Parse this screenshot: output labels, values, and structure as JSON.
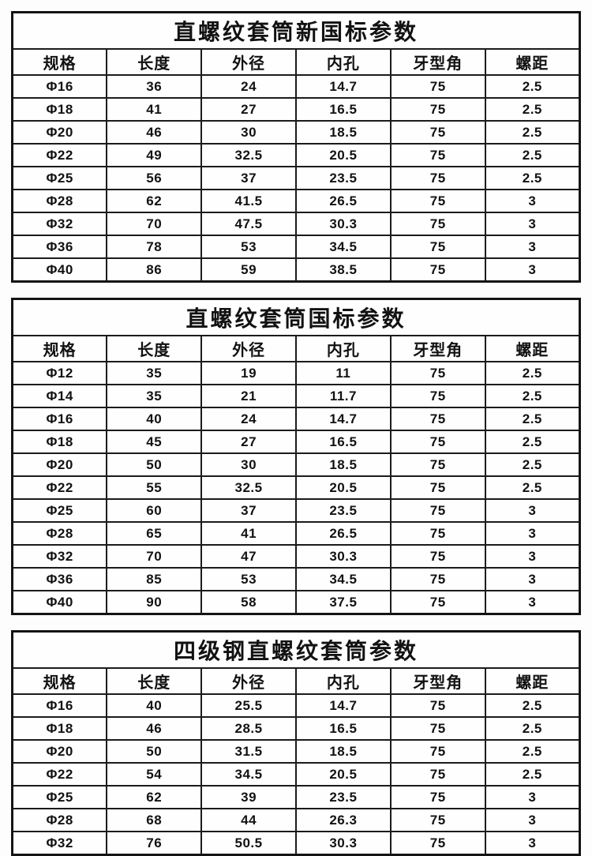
{
  "page": {
    "background_color": "#fdfdfd",
    "border_color": "#1b1b1b",
    "text_color": "#121212"
  },
  "tables": [
    {
      "title": "直螺纹套筒新国标参数",
      "headers": [
        "规格",
        "长度",
        "外径",
        "内孔",
        "牙型角",
        "螺距"
      ],
      "rows": [
        [
          "Φ16",
          "36",
          "24",
          "14.7",
          "75",
          "2.5"
        ],
        [
          "Φ18",
          "41",
          "27",
          "16.5",
          "75",
          "2.5"
        ],
        [
          "Φ20",
          "46",
          "30",
          "18.5",
          "75",
          "2.5"
        ],
        [
          "Φ22",
          "49",
          "32.5",
          "20.5",
          "75",
          "2.5"
        ],
        [
          "Φ25",
          "56",
          "37",
          "23.5",
          "75",
          "2.5"
        ],
        [
          "Φ28",
          "62",
          "41.5",
          "26.5",
          "75",
          "3"
        ],
        [
          "Φ32",
          "70",
          "47.5",
          "30.3",
          "75",
          "3"
        ],
        [
          "Φ36",
          "78",
          "53",
          "34.5",
          "75",
          "3"
        ],
        [
          "Φ40",
          "86",
          "59",
          "38.5",
          "75",
          "3"
        ]
      ]
    },
    {
      "title": "直螺纹套筒国标参数",
      "headers": [
        "规格",
        "长度",
        "外径",
        "内孔",
        "牙型角",
        "螺距"
      ],
      "rows": [
        [
          "Φ12",
          "35",
          "19",
          "11",
          "75",
          "2.5"
        ],
        [
          "Φ14",
          "35",
          "21",
          "11.7",
          "75",
          "2.5"
        ],
        [
          "Φ16",
          "40",
          "24",
          "14.7",
          "75",
          "2.5"
        ],
        [
          "Φ18",
          "45",
          "27",
          "16.5",
          "75",
          "2.5"
        ],
        [
          "Φ20",
          "50",
          "30",
          "18.5",
          "75",
          "2.5"
        ],
        [
          "Φ22",
          "55",
          "32.5",
          "20.5",
          "75",
          "2.5"
        ],
        [
          "Φ25",
          "60",
          "37",
          "23.5",
          "75",
          "3"
        ],
        [
          "Φ28",
          "65",
          "41",
          "26.5",
          "75",
          "3"
        ],
        [
          "Φ32",
          "70",
          "47",
          "30.3",
          "75",
          "3"
        ],
        [
          "Φ36",
          "85",
          "53",
          "34.5",
          "75",
          "3"
        ],
        [
          "Φ40",
          "90",
          "58",
          "37.5",
          "75",
          "3"
        ]
      ]
    },
    {
      "title": "四级钢直螺纹套筒参数",
      "headers": [
        "规格",
        "长度",
        "外径",
        "内孔",
        "牙型角",
        "螺距"
      ],
      "rows": [
        [
          "Φ16",
          "40",
          "25.5",
          "14.7",
          "75",
          "2.5"
        ],
        [
          "Φ18",
          "46",
          "28.5",
          "16.5",
          "75",
          "2.5"
        ],
        [
          "Φ20",
          "50",
          "31.5",
          "18.5",
          "75",
          "2.5"
        ],
        [
          "Φ22",
          "54",
          "34.5",
          "20.5",
          "75",
          "2.5"
        ],
        [
          "Φ25",
          "62",
          "39",
          "23.5",
          "75",
          "3"
        ],
        [
          "Φ28",
          "68",
          "44",
          "26.3",
          "75",
          "3"
        ],
        [
          "Φ32",
          "76",
          "50.5",
          "30.3",
          "75",
          "3"
        ]
      ]
    }
  ]
}
